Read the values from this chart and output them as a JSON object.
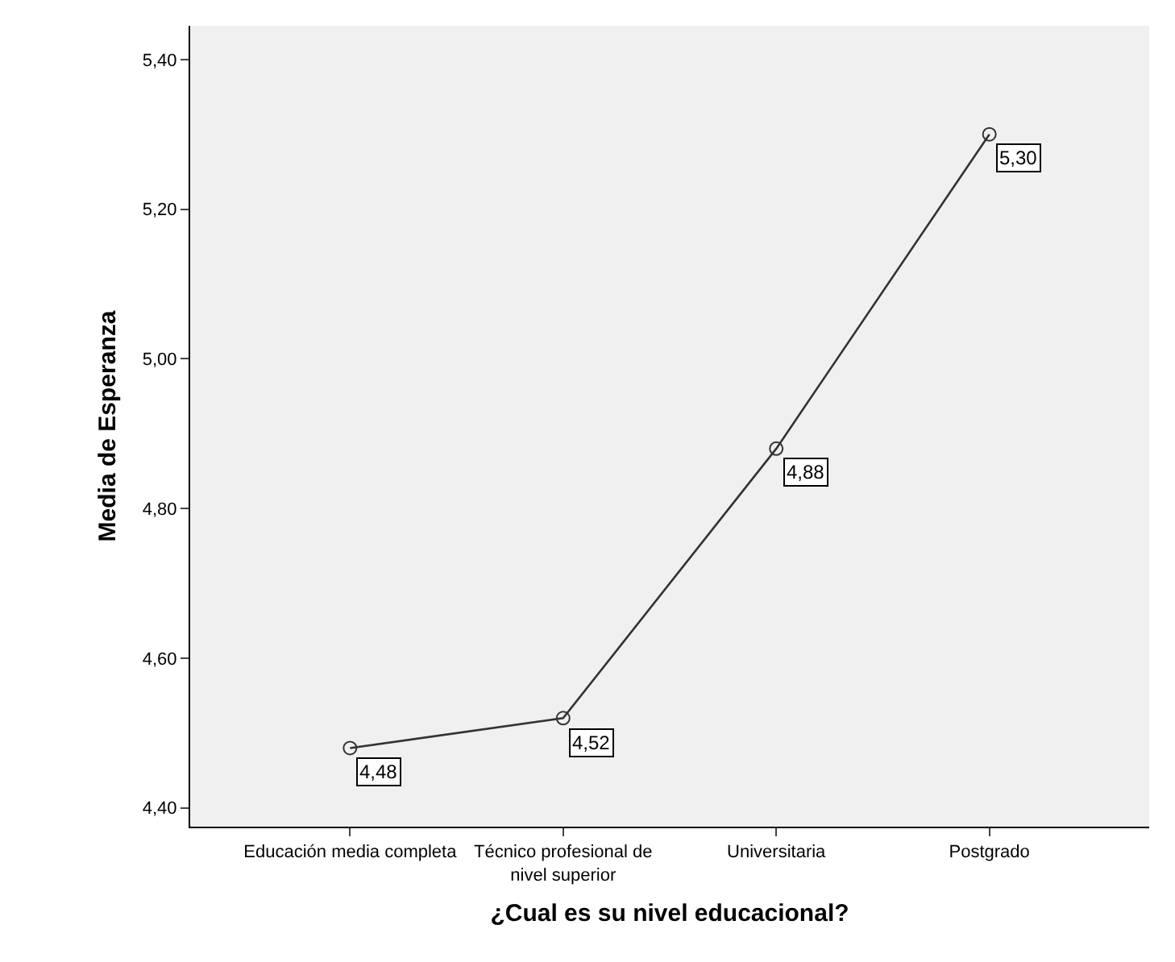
{
  "chart_data": {
    "type": "line",
    "xlabel": "¿Cual es su nivel educacional?",
    "ylabel": "Media de Esperanza",
    "categories": [
      "Educación media completa",
      "Técnico profesional de nivel superior",
      "Universitaria",
      "Postgrado"
    ],
    "series": [
      {
        "color": "#333333",
        "values": [
          4.48,
          4.52,
          4.88,
          5.3
        ],
        "value_labels": [
          "4,48",
          "4,52",
          "4,88",
          "5,30"
        ]
      }
    ],
    "ylim": [
      4.375,
      5.445
    ],
    "yticks": [
      {
        "value": 4.4,
        "label": "4,40"
      },
      {
        "value": 4.6,
        "label": "4,60"
      },
      {
        "value": 4.8,
        "label": "4,80"
      },
      {
        "value": 5.0,
        "label": "5,00"
      },
      {
        "value": 5.2,
        "label": "5,20"
      },
      {
        "value": 5.4,
        "label": "5,40"
      }
    ],
    "grid": false,
    "marker": "circle",
    "line_style": "solid"
  }
}
